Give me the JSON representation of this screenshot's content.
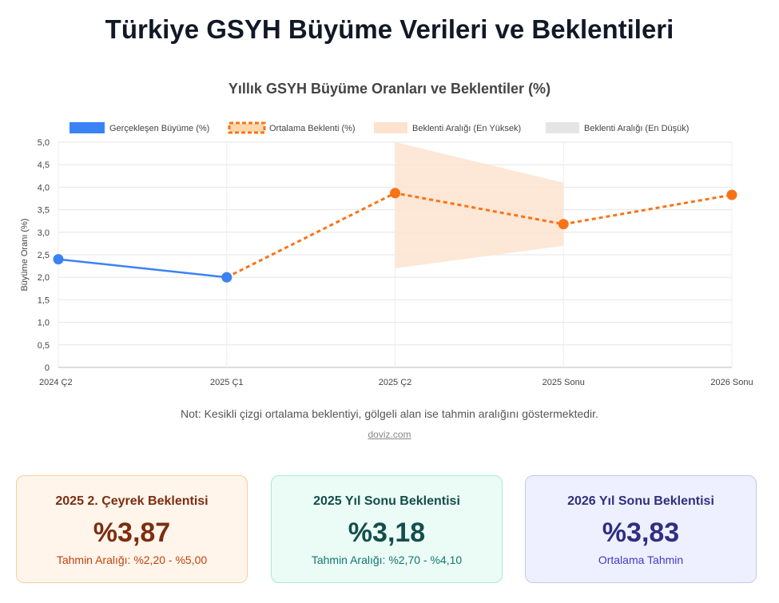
{
  "page_title": "Türkiye GSYH Büyüme Verileri ve Beklentileri",
  "note": "Not: Kesikli çizgi ortalama beklentiyi, gölgeli alan ise tahmin aralığını göstermektedir.",
  "source": "doviz.com",
  "colors": {
    "actual": "#3b82f6",
    "average": "#f97316",
    "range_high": "#fde3cf",
    "range_low": "#e5e5e5"
  },
  "chart_data": {
    "type": "line",
    "title": "Yıllık GSYH Büyüme Oranları ve Beklentiler (%)",
    "ylabel": "Büyüme Oranı (%)",
    "xlabel": "",
    "categories": [
      "2024 Ç2",
      "2025 Ç1",
      "2025 Ç2",
      "2025 Sonu",
      "2026 Sonu"
    ],
    "ylim": [
      0,
      5
    ],
    "yticks": [
      "0",
      "0,5",
      "1,0",
      "1,5",
      "2,0",
      "2,5",
      "3,0",
      "3,5",
      "4,0",
      "4,5",
      "5,0"
    ],
    "grid": true,
    "legend_position": "top",
    "series": [
      {
        "name": "Gerçekleşen Büyüme (%)",
        "values": [
          2.4,
          2.0,
          null,
          null,
          null
        ],
        "style": "solid"
      },
      {
        "name": "Ortalama Beklenti (%)",
        "values": [
          null,
          2.0,
          3.87,
          3.18,
          3.83
        ],
        "style": "dashed"
      },
      {
        "name": "Beklenti Aralığı (En Yüksek)",
        "values": [
          null,
          null,
          5.0,
          4.1,
          null
        ],
        "style": "band-upper"
      },
      {
        "name": "Beklenti Aralığı (En Düşük)",
        "values": [
          null,
          null,
          2.2,
          2.7,
          null
        ],
        "style": "band-lower"
      }
    ]
  },
  "cards": [
    {
      "title": "2025 2. Çeyrek Beklentisi",
      "value": "%3,87",
      "sub": "Tahmin Aralığı: %2,20 - %5,00"
    },
    {
      "title": "2025 Yıl Sonu Beklentisi",
      "value": "%3,18",
      "sub": "Tahmin Aralığı: %2,70 - %4,10"
    },
    {
      "title": "2026 Yıl Sonu Beklentisi",
      "value": "%3,83",
      "sub": "Ortalama Tahmin"
    }
  ]
}
